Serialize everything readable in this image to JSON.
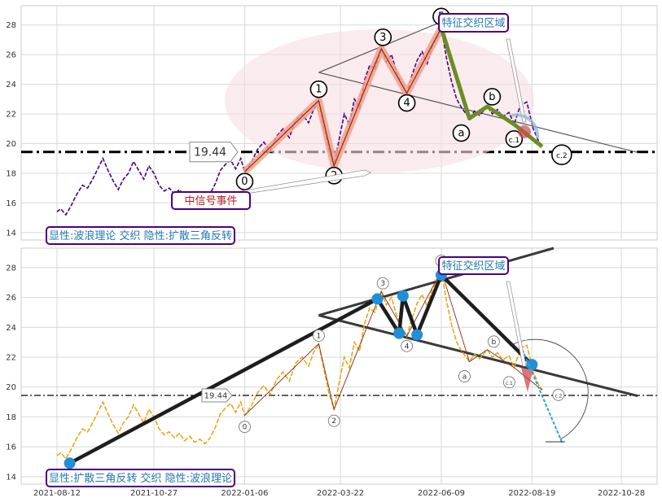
{
  "chart_data": [
    {
      "type": "line",
      "panel": "top",
      "ylim": [
        13.5,
        29.3
      ],
      "yticks": [
        14,
        16,
        18,
        20,
        22,
        24,
        26,
        28
      ],
      "grid": true,
      "hline": {
        "value": 19.44,
        "label": "19.44"
      },
      "labels": {
        "top_right": "特征交织区域",
        "signal": "中信号事件",
        "bottom_left": "显性:波浪理论 交织 隐性:扩散三角反转"
      },
      "wave_points": [
        {
          "label": "0",
          "date": "2022-01-06",
          "value": 18.1
        },
        {
          "label": "1",
          "date": "2022-03-05",
          "value": 22.9
        },
        {
          "label": "2",
          "date": "2022-03-17",
          "value": 18.5
        },
        {
          "label": "3",
          "date": "2022-04-23",
          "value": 26.4
        },
        {
          "label": "4",
          "date": "2022-05-13",
          "value": 23.4
        },
        {
          "label": "5",
          "date": "2022-06-09",
          "value": 27.8
        },
        {
          "label": "a",
          "date": "2022-07-01",
          "value": 21.7
        },
        {
          "label": "b",
          "date": "2022-07-15",
          "value": 22.5
        },
        {
          "label": "c.1",
          "date": "2022-08-05",
          "value": 21.3
        },
        {
          "label": "c.2",
          "date": "2022-08-27",
          "value": 19.8
        }
      ],
      "price_series": [
        [
          "2021-08-12",
          15.4
        ],
        [
          "2021-08-15",
          15.6
        ],
        [
          "2021-08-19",
          15.2
        ],
        [
          "2021-08-23",
          15.8
        ],
        [
          "2021-08-27",
          16.5
        ],
        [
          "2021-09-01",
          17.2
        ],
        [
          "2021-09-05",
          17.0
        ],
        [
          "2021-09-09",
          17.6
        ],
        [
          "2021-09-13",
          18.3
        ],
        [
          "2021-09-17",
          19.0
        ],
        [
          "2021-09-21",
          18.2
        ],
        [
          "2021-09-25",
          17.5
        ],
        [
          "2021-09-29",
          16.9
        ],
        [
          "2021-10-03",
          17.6
        ],
        [
          "2021-10-07",
          18.0
        ],
        [
          "2021-10-11",
          18.8
        ],
        [
          "2021-10-15",
          18.2
        ],
        [
          "2021-10-19",
          17.6
        ],
        [
          "2021-10-23",
          18.5
        ],
        [
          "2021-10-27",
          18.0
        ],
        [
          "2021-10-31",
          17.2
        ],
        [
          "2021-11-04",
          16.8
        ],
        [
          "2021-11-08",
          17.0
        ],
        [
          "2021-11-12",
          16.6
        ],
        [
          "2021-11-16",
          16.9
        ],
        [
          "2021-11-20",
          16.4
        ],
        [
          "2021-11-24",
          16.7
        ],
        [
          "2021-11-28",
          16.3
        ],
        [
          "2021-12-02",
          16.5
        ],
        [
          "2021-12-06",
          16.2
        ],
        [
          "2021-12-10",
          16.6
        ],
        [
          "2021-12-14",
          17.3
        ],
        [
          "2021-12-18",
          18.2
        ],
        [
          "2021-12-22",
          18.6
        ],
        [
          "2021-12-26",
          18.9
        ],
        [
          "2021-12-30",
          18.3
        ],
        [
          "2022-01-03",
          19.0
        ],
        [
          "2022-01-06",
          18.1
        ],
        [
          "2022-01-11",
          18.7
        ],
        [
          "2022-01-16",
          19.6
        ],
        [
          "2022-01-21",
          20.1
        ],
        [
          "2022-01-26",
          19.5
        ],
        [
          "2022-01-31",
          20.5
        ],
        [
          "2022-02-05",
          21.0
        ],
        [
          "2022-02-10",
          20.4
        ],
        [
          "2022-02-15",
          21.6
        ],
        [
          "2022-02-20",
          22.0
        ],
        [
          "2022-02-25",
          21.4
        ],
        [
          "2022-03-01",
          22.3
        ],
        [
          "2022-03-05",
          22.9
        ],
        [
          "2022-03-09",
          21.2
        ],
        [
          "2022-03-13",
          19.6
        ],
        [
          "2022-03-17",
          18.5
        ],
        [
          "2022-03-21",
          20.3
        ],
        [
          "2022-03-25",
          22.0
        ],
        [
          "2022-03-29",
          21.3
        ],
        [
          "2022-04-02",
          23.0
        ],
        [
          "2022-04-06",
          22.4
        ],
        [
          "2022-04-10",
          24.3
        ],
        [
          "2022-04-14",
          25.3
        ],
        [
          "2022-04-18",
          25.0
        ],
        [
          "2022-04-23",
          26.4
        ],
        [
          "2022-04-27",
          25.5
        ],
        [
          "2022-05-01",
          26.0
        ],
        [
          "2022-05-05",
          24.8
        ],
        [
          "2022-05-09",
          24.0
        ],
        [
          "2022-05-13",
          23.4
        ],
        [
          "2022-05-17",
          24.6
        ],
        [
          "2022-05-21",
          25.6
        ],
        [
          "2022-05-25",
          26.2
        ],
        [
          "2022-05-29",
          25.4
        ],
        [
          "2022-06-02",
          26.6
        ],
        [
          "2022-06-06",
          27.2
        ],
        [
          "2022-06-09",
          27.8
        ],
        [
          "2022-06-13",
          25.8
        ],
        [
          "2022-06-17",
          24.2
        ],
        [
          "2022-06-21",
          23.0
        ],
        [
          "2022-06-25",
          22.4
        ],
        [
          "2022-07-01",
          21.7
        ],
        [
          "2022-07-05",
          22.2
        ],
        [
          "2022-07-09",
          21.9
        ],
        [
          "2022-07-15",
          22.5
        ],
        [
          "2022-07-19",
          22.0
        ],
        [
          "2022-07-23",
          22.3
        ],
        [
          "2022-07-27",
          21.8
        ],
        [
          "2022-08-01",
          22.1
        ],
        [
          "2022-08-05",
          21.3
        ],
        [
          "2022-08-10",
          22.6
        ],
        [
          "2022-08-15",
          22.8
        ],
        [
          "2022-08-20",
          21.0
        ],
        [
          "2022-08-24",
          20.2
        ],
        [
          "2022-08-27",
          19.8
        ]
      ]
    },
    {
      "type": "line",
      "panel": "bottom",
      "ylim": [
        13.5,
        29.3
      ],
      "yticks": [
        14,
        16,
        18,
        20,
        22,
        24,
        26,
        28
      ],
      "xticks": [
        "2021-08-12",
        "2021-10-27",
        "2022-01-06",
        "2022-03-22",
        "2022-06-09",
        "2022-08-19",
        "2022-10-28"
      ],
      "xlim": [
        "2021-07-15",
        "2022-11-25"
      ],
      "grid": true,
      "hline": {
        "value": 19.44,
        "label": "19.44"
      },
      "labels": {
        "top_right": "特征交织区域",
        "bottom_left": "显性:扩散三角反转 交织 隐性:波浪理论",
        "c2": "c.2"
      },
      "triangle_points": [
        {
          "date": "2021-08-22",
          "value": 14.9
        },
        {
          "date": "2022-04-20",
          "value": 25.9
        },
        {
          "date": "2022-05-07",
          "value": 23.6
        },
        {
          "date": "2022-05-10",
          "value": 26.1
        },
        {
          "date": "2022-05-21",
          "value": 23.5
        },
        {
          "date": "2022-06-09",
          "value": 27.5
        },
        {
          "date": "2022-08-19",
          "value": 21.5
        }
      ]
    }
  ]
}
